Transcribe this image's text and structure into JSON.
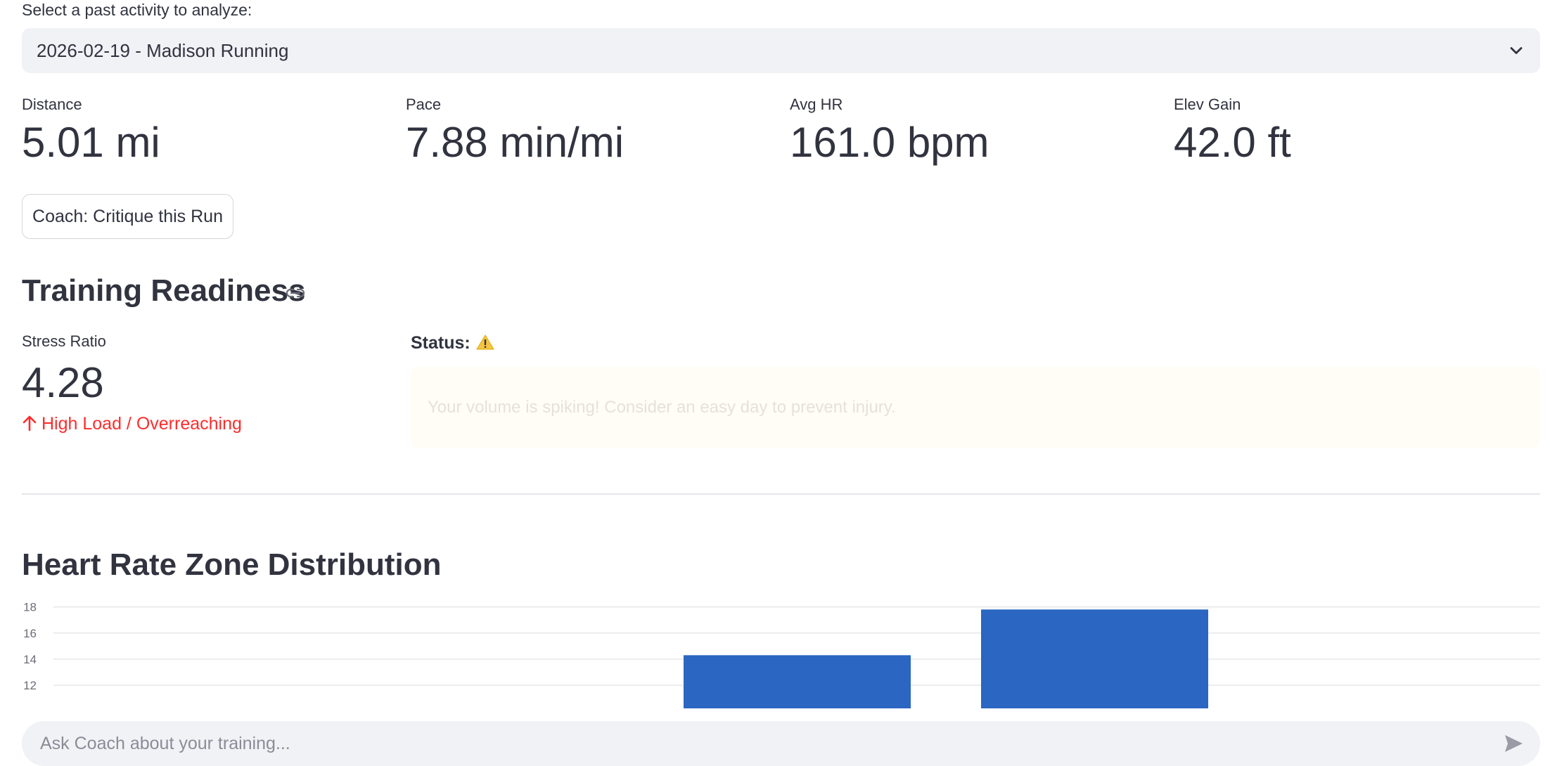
{
  "activity_select": {
    "label": "Select a past activity to analyze:",
    "value": "2026-02-19 - Madison Running"
  },
  "metrics": [
    {
      "label": "Distance",
      "value": "5.01 mi"
    },
    {
      "label": "Pace",
      "value": "7.88 min/mi"
    },
    {
      "label": "Avg HR",
      "value": "161.0 bpm"
    },
    {
      "label": "Elev Gain",
      "value": "42.0 ft"
    }
  ],
  "coach_button": {
    "label": "Coach: Critique this Run"
  },
  "readiness": {
    "title": "Training Readiness",
    "stress_label": "Stress Ratio",
    "stress_value": "4.28",
    "delta_text": "High Load / Overreaching",
    "status_label": "Status:",
    "status_message": "Your volume is spiking! Consider an easy day to prevent injury."
  },
  "hr_zones": {
    "title": "Heart Rate Zone Distribution"
  },
  "chart_data": {
    "type": "bar",
    "title": "Heart Rate Zone Distribution",
    "xlabel": "",
    "ylabel": "",
    "ylim": [
      10.5,
      18.3
    ],
    "yticks": [
      12,
      14,
      16,
      18
    ],
    "grid": true,
    "bar_color": "#2a66c2",
    "bars": [
      {
        "value": 14.3
      },
      {
        "value": 17.8
      }
    ]
  },
  "chat": {
    "placeholder": "Ask Coach about your training..."
  },
  "colors": {
    "accent": "#2a66c2",
    "delta_negative": "#ff2b2b",
    "warning": "#f5c542"
  },
  "icons": {
    "select_toggle": "chevron-down-icon",
    "header_link": "link-icon",
    "delta": "arrow-up-icon",
    "status": "warning-icon",
    "send": "send-icon"
  }
}
